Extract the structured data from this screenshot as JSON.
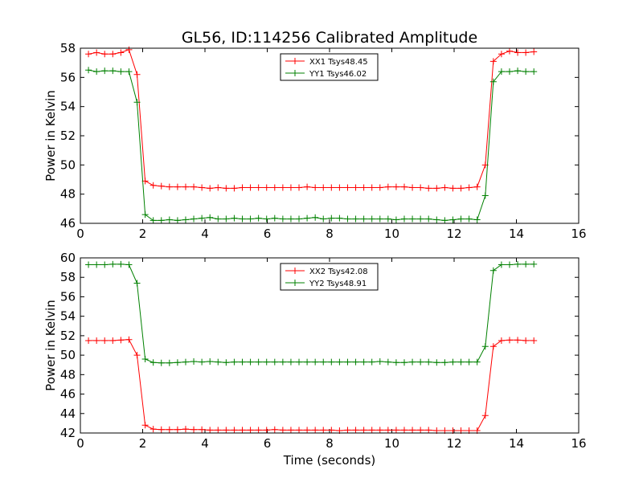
{
  "figure": {
    "title": "GL56, ID:114256 Calibrated Amplitude",
    "xlabel": "Time (seconds)"
  },
  "chart_data": [
    {
      "type": "line",
      "ylabel": "Power in Kelvin",
      "xlim": [
        0,
        16
      ],
      "ylim": [
        46,
        58
      ],
      "xticks": [
        0,
        2,
        4,
        6,
        8,
        10,
        12,
        14,
        16
      ],
      "yticks": [
        46,
        48,
        50,
        52,
        54,
        56,
        58
      ],
      "legend": "top-center",
      "x": [
        0.26,
        0.52,
        0.78,
        1.04,
        1.3,
        1.56,
        1.82,
        2.08,
        2.34,
        2.6,
        2.86,
        3.12,
        3.38,
        3.64,
        3.9,
        4.16,
        4.42,
        4.68,
        4.94,
        5.2,
        5.46,
        5.72,
        5.98,
        6.24,
        6.5,
        6.76,
        7.02,
        7.28,
        7.54,
        7.8,
        8.06,
        8.32,
        8.58,
        8.84,
        9.1,
        9.36,
        9.62,
        9.88,
        10.14,
        10.4,
        10.66,
        10.92,
        11.18,
        11.44,
        11.7,
        11.96,
        12.22,
        12.48,
        12.74,
        13.0,
        13.26,
        13.52,
        13.78,
        14.04,
        14.3,
        14.56
      ],
      "series": [
        {
          "name": "XX1 Tsys48.45",
          "color": "#ff0000",
          "values": [
            57.6,
            57.7,
            57.6,
            57.6,
            57.7,
            57.9,
            56.2,
            48.9,
            48.6,
            48.55,
            48.5,
            48.5,
            48.5,
            48.5,
            48.45,
            48.4,
            48.45,
            48.4,
            48.4,
            48.45,
            48.45,
            48.45,
            48.45,
            48.45,
            48.45,
            48.45,
            48.45,
            48.5,
            48.45,
            48.45,
            48.45,
            48.45,
            48.45,
            48.45,
            48.45,
            48.45,
            48.45,
            48.5,
            48.5,
            48.5,
            48.45,
            48.45,
            48.4,
            48.4,
            48.45,
            48.4,
            48.4,
            48.45,
            48.5,
            50.0,
            57.1,
            57.6,
            57.8,
            57.7,
            57.7,
            57.75
          ]
        },
        {
          "name": "YY1 Tsys46.02",
          "color": "#008000",
          "values": [
            56.5,
            56.4,
            56.45,
            56.45,
            56.4,
            56.4,
            54.3,
            46.6,
            46.2,
            46.2,
            46.25,
            46.2,
            46.25,
            46.3,
            46.35,
            46.4,
            46.3,
            46.3,
            46.35,
            46.3,
            46.3,
            46.35,
            46.3,
            46.35,
            46.3,
            46.3,
            46.3,
            46.35,
            46.4,
            46.3,
            46.35,
            46.35,
            46.3,
            46.3,
            46.3,
            46.3,
            46.3,
            46.3,
            46.25,
            46.3,
            46.3,
            46.3,
            46.3,
            46.25,
            46.2,
            46.25,
            46.3,
            46.3,
            46.25,
            47.9,
            55.7,
            56.4,
            56.4,
            56.45,
            56.4,
            56.4
          ]
        }
      ]
    },
    {
      "type": "line",
      "ylabel": "Power in Kelvin",
      "xlim": [
        0,
        16
      ],
      "ylim": [
        42,
        60
      ],
      "xticks": [
        0,
        2,
        4,
        6,
        8,
        10,
        12,
        14,
        16
      ],
      "yticks": [
        42,
        44,
        46,
        48,
        50,
        52,
        54,
        56,
        58,
        60
      ],
      "legend": "top-center",
      "x": [
        0.26,
        0.52,
        0.78,
        1.04,
        1.3,
        1.56,
        1.82,
        2.08,
        2.34,
        2.6,
        2.86,
        3.12,
        3.38,
        3.64,
        3.9,
        4.16,
        4.42,
        4.68,
        4.94,
        5.2,
        5.46,
        5.72,
        5.98,
        6.24,
        6.5,
        6.76,
        7.02,
        7.28,
        7.54,
        7.8,
        8.06,
        8.32,
        8.58,
        8.84,
        9.1,
        9.36,
        9.62,
        9.88,
        10.14,
        10.4,
        10.66,
        10.92,
        11.18,
        11.44,
        11.7,
        11.96,
        12.22,
        12.48,
        12.74,
        13.0,
        13.26,
        13.52,
        13.78,
        14.04,
        14.3,
        14.56
      ],
      "series": [
        {
          "name": "XX2 Tsys42.08",
          "color": "#ff0000",
          "values": [
            51.5,
            51.5,
            51.5,
            51.5,
            51.55,
            51.6,
            50.0,
            42.8,
            42.4,
            42.35,
            42.35,
            42.35,
            42.4,
            42.35,
            42.35,
            42.3,
            42.3,
            42.3,
            42.3,
            42.3,
            42.3,
            42.3,
            42.3,
            42.35,
            42.3,
            42.3,
            42.3,
            42.3,
            42.3,
            42.3,
            42.3,
            42.25,
            42.3,
            42.3,
            42.3,
            42.3,
            42.3,
            42.3,
            42.3,
            42.3,
            42.3,
            42.3,
            42.3,
            42.25,
            42.25,
            42.25,
            42.25,
            42.25,
            42.25,
            43.8,
            50.9,
            51.5,
            51.55,
            51.55,
            51.5,
            51.5
          ]
        },
        {
          "name": "YY2 Tsys48.91",
          "color": "#008000",
          "values": [
            59.3,
            59.3,
            59.3,
            59.35,
            59.35,
            59.3,
            57.4,
            49.6,
            49.25,
            49.2,
            49.2,
            49.25,
            49.3,
            49.35,
            49.3,
            49.35,
            49.3,
            49.25,
            49.3,
            49.3,
            49.3,
            49.3,
            49.3,
            49.3,
            49.3,
            49.3,
            49.3,
            49.3,
            49.3,
            49.3,
            49.3,
            49.3,
            49.3,
            49.3,
            49.3,
            49.3,
            49.35,
            49.3,
            49.25,
            49.25,
            49.3,
            49.3,
            49.3,
            49.25,
            49.25,
            49.3,
            49.3,
            49.3,
            49.3,
            50.9,
            58.7,
            59.3,
            59.3,
            59.35,
            59.35,
            59.35
          ]
        }
      ]
    }
  ]
}
